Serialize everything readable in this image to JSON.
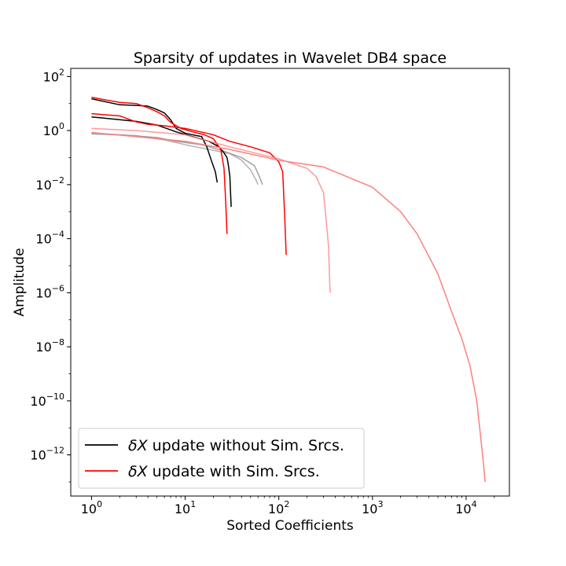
{
  "chart_data": {
    "type": "line",
    "title": "Sparsity of updates in Wavelet DB4 space",
    "xlabel": "Sorted Coefficients",
    "ylabel": "Amplitude",
    "xscale": "log",
    "yscale": "log",
    "xlim": [
      0.6,
      29000
    ],
    "ylim": [
      3e-14,
      200
    ],
    "grid": false,
    "legend_position": "lower-left",
    "x_ticks": [
      {
        "value": 1,
        "base": "10",
        "exp": "0"
      },
      {
        "value": 10,
        "base": "10",
        "exp": "1"
      },
      {
        "value": 100,
        "base": "10",
        "exp": "2"
      },
      {
        "value": 1000,
        "base": "10",
        "exp": "3"
      },
      {
        "value": 10000,
        "base": "10",
        "exp": "4"
      }
    ],
    "y_ticks": [
      {
        "value": 100,
        "base": "10",
        "exp": "2"
      },
      {
        "value": 1,
        "base": "10",
        "exp": "0"
      },
      {
        "value": 0.01,
        "base": "10",
        "exp": "−2"
      },
      {
        "value": 0.0001,
        "base": "10",
        "exp": "−4"
      },
      {
        "value": 1e-06,
        "base": "10",
        "exp": "−6"
      },
      {
        "value": 1e-08,
        "base": "10",
        "exp": "−8"
      },
      {
        "value": 1e-10,
        "base": "10",
        "exp": "−10"
      },
      {
        "value": 1e-12,
        "base": "10",
        "exp": "−12"
      }
    ],
    "legend": [
      {
        "math": "δX",
        "text": " update without Sim. Srcs.",
        "color": "#000000"
      },
      {
        "math": "δX",
        "text": " update with Sim. Srcs.",
        "color": "#ff0000"
      }
    ],
    "series": [
      {
        "color": "#808080",
        "opacity": 0.75,
        "width": 1.5,
        "points": [
          [
            1,
            0.8
          ],
          [
            2,
            0.7
          ],
          [
            5,
            0.55
          ],
          [
            8,
            0.4
          ],
          [
            15,
            0.3
          ],
          [
            25,
            0.18
          ],
          [
            40,
            0.1
          ],
          [
            55,
            0.05
          ],
          [
            62,
            0.02
          ],
          [
            67,
            0.01
          ]
        ]
      },
      {
        "color": "#999999",
        "opacity": 0.75,
        "width": 1.5,
        "points": [
          [
            1,
            0.75
          ],
          [
            3,
            0.65
          ],
          [
            6,
            0.45
          ],
          [
            10,
            0.3
          ],
          [
            18,
            0.2
          ],
          [
            30,
            0.14
          ],
          [
            40,
            0.08
          ],
          [
            50,
            0.035
          ],
          [
            57,
            0.015
          ],
          [
            60,
            0.01
          ]
        ]
      },
      {
        "color": "#000000",
        "opacity": 1.0,
        "width": 1.5,
        "points": [
          [
            1,
            3.2
          ],
          [
            3,
            2.2
          ],
          [
            5,
            1.6
          ],
          [
            8,
            0.9
          ],
          [
            12,
            0.6
          ],
          [
            18,
            0.4
          ],
          [
            23,
            0.25
          ],
          [
            26,
            0.15
          ],
          [
            28,
            0.1
          ],
          [
            29,
            0.05
          ],
          [
            30,
            0.02
          ],
          [
            31,
            0.0015
          ]
        ]
      },
      {
        "color": "#000000",
        "opacity": 1.0,
        "width": 1.5,
        "points": [
          [
            1,
            15
          ],
          [
            2,
            9
          ],
          [
            3,
            8.5
          ],
          [
            4,
            8
          ],
          [
            5,
            6
          ],
          [
            6,
            4.5
          ],
          [
            7,
            2.5
          ],
          [
            8,
            1.2
          ],
          [
            10,
            0.8
          ],
          [
            12,
            0.7
          ],
          [
            15,
            0.6
          ],
          [
            17,
            0.25
          ],
          [
            19,
            0.08
          ],
          [
            21,
            0.03
          ],
          [
            22,
            0.012
          ]
        ]
      },
      {
        "color": "#ff0000",
        "opacity": 1.0,
        "width": 1.5,
        "points": [
          [
            1,
            17
          ],
          [
            2,
            11
          ],
          [
            3,
            10
          ],
          [
            4,
            7
          ],
          [
            5,
            5
          ],
          [
            6,
            3.5
          ],
          [
            7,
            2
          ],
          [
            9,
            1.2
          ],
          [
            12,
            0.9
          ],
          [
            16,
            0.7
          ],
          [
            20,
            0.5
          ],
          [
            24,
            0.2
          ],
          [
            26,
            0.04
          ],
          [
            27,
            0.003
          ],
          [
            28,
            0.00015
          ]
        ]
      },
      {
        "color": "#ff0000",
        "opacity": 1.0,
        "width": 1.5,
        "points": [
          [
            1,
            4.2
          ],
          [
            2,
            3.5
          ],
          [
            3,
            2.1
          ],
          [
            4,
            1.7
          ],
          [
            6,
            1.5
          ],
          [
            10,
            1.2
          ],
          [
            20,
            0.7
          ],
          [
            30,
            0.4
          ],
          [
            50,
            0.25
          ],
          [
            80,
            0.15
          ],
          [
            100,
            0.07
          ],
          [
            110,
            0.03
          ],
          [
            115,
            0.001
          ],
          [
            118,
            0.0001
          ],
          [
            120,
            2.5e-05
          ]
        ]
      },
      {
        "color": "#ff7f7f",
        "opacity": 0.8,
        "width": 1.5,
        "points": [
          [
            1,
            1.2
          ],
          [
            3,
            1.0
          ],
          [
            10,
            0.7
          ],
          [
            30,
            0.25
          ],
          [
            100,
            0.09
          ],
          [
            200,
            0.04
          ],
          [
            250,
            0.02
          ],
          [
            300,
            0.005
          ],
          [
            320,
            0.0005
          ],
          [
            340,
            5e-05
          ],
          [
            350,
            2e-06
          ],
          [
            355,
            1e-06
          ]
        ]
      },
      {
        "color": "#ff7f7f",
        "opacity": 1.0,
        "width": 1.5,
        "points": [
          [
            1,
            0.85
          ],
          [
            10,
            0.4
          ],
          [
            30,
            0.2
          ],
          [
            100,
            0.08
          ],
          [
            300,
            0.045
          ],
          [
            1000,
            0.008
          ],
          [
            2000,
            0.001
          ],
          [
            3000,
            0.00015
          ],
          [
            5000,
            5e-06
          ],
          [
            7000,
            2e-07
          ],
          [
            9000,
            2e-08
          ],
          [
            11000,
            2e-09
          ],
          [
            13000,
            1e-10
          ],
          [
            15000,
            1e-12
          ],
          [
            16000,
            1e-13
          ]
        ]
      }
    ]
  }
}
